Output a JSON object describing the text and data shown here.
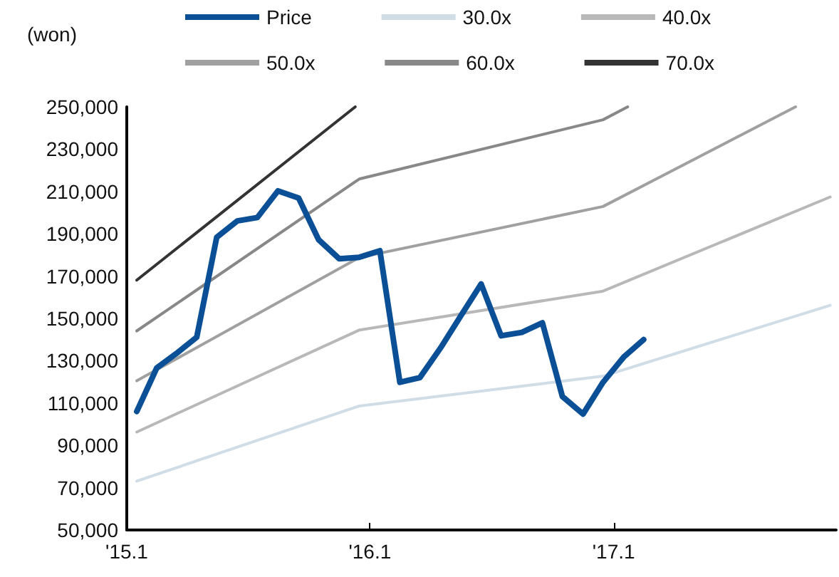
{
  "chart_data": {
    "type": "line",
    "ylabel": "(won)",
    "xlim": [
      "2015-01-01",
      "2017-12-01"
    ],
    "xticks": [
      {
        "value": "2015-01-01",
        "label": "'15.1"
      },
      {
        "value": "2016-01-01",
        "label": "'16.1"
      },
      {
        "value": "2017-01-01",
        "label": "'17.1"
      }
    ],
    "ylim": [
      50000,
      250000
    ],
    "yticks": [
      {
        "value": 50000,
        "label": "50,000"
      },
      {
        "value": 70000,
        "label": "70,000"
      },
      {
        "value": 90000,
        "label": "90,000"
      },
      {
        "value": 110000,
        "label": "110,000"
      },
      {
        "value": 130000,
        "label": "130,000"
      },
      {
        "value": 150000,
        "label": "150,000"
      },
      {
        "value": 170000,
        "label": "170,000"
      },
      {
        "value": 190000,
        "label": "190,000"
      },
      {
        "value": 210000,
        "label": "210,000"
      },
      {
        "value": 230000,
        "label": "230,000"
      },
      {
        "value": 250000,
        "label": "250,000"
      }
    ],
    "grid": false,
    "legend": "top",
    "marker": "none",
    "line_style": "solid",
    "series": [
      {
        "name": "Price",
        "color": "#0b4f96",
        "x": [
          "2015-01-16",
          "2015-02-15",
          "2015-03-16",
          "2015-04-16",
          "2015-05-16",
          "2015-06-16",
          "2015-07-16",
          "2015-08-16",
          "2015-09-16",
          "2015-10-16",
          "2015-11-16",
          "2015-12-16",
          "2016-01-16",
          "2016-02-15",
          "2016-03-16",
          "2016-04-16",
          "2016-05-16",
          "2016-06-16",
          "2016-07-16",
          "2016-08-16",
          "2016-09-16",
          "2016-10-16",
          "2016-11-16",
          "2016-12-16",
          "2017-01-16",
          "2017-02-15"
        ],
        "values": [
          106000,
          126600,
          133300,
          141100,
          188300,
          196100,
          197700,
          210300,
          206900,
          187200,
          178200,
          178900,
          182000,
          119800,
          122000,
          136000,
          151000,
          166300,
          141800,
          143400,
          147900,
          113100,
          104800,
          119800,
          131700,
          140000
        ]
      },
      {
        "name": "30.0x",
        "color": "#d0dce6",
        "x": [
          "2015-01-16",
          "2015-12-16",
          "2016-12-16",
          "2017-11-22"
        ],
        "values": [
          73100,
          108600,
          122700,
          156200
        ]
      },
      {
        "name": "40.0x",
        "color": "#b8b8b8",
        "x": [
          "2015-01-16",
          "2015-12-16",
          "2016-12-16",
          "2017-11-22"
        ],
        "values": [
          96300,
          144500,
          162900,
          207400
        ]
      },
      {
        "name": "50.0x",
        "color": "#a0a0a0",
        "x": [
          "2015-01-16",
          "2015-12-16",
          "2016-12-16",
          "2017-10-01"
        ],
        "values": [
          120500,
          178800,
          202900,
          250000
        ]
      },
      {
        "name": "60.0x",
        "color": "#888888",
        "x": [
          "2015-01-16",
          "2015-12-16",
          "2016-12-16",
          "2017-01-22"
        ],
        "values": [
          144100,
          215900,
          243900,
          250000
        ]
      },
      {
        "name": "70.0x",
        "color": "#333333",
        "x": [
          "2015-01-16",
          "2015-12-10"
        ],
        "values": [
          168100,
          250000
        ]
      }
    ]
  }
}
